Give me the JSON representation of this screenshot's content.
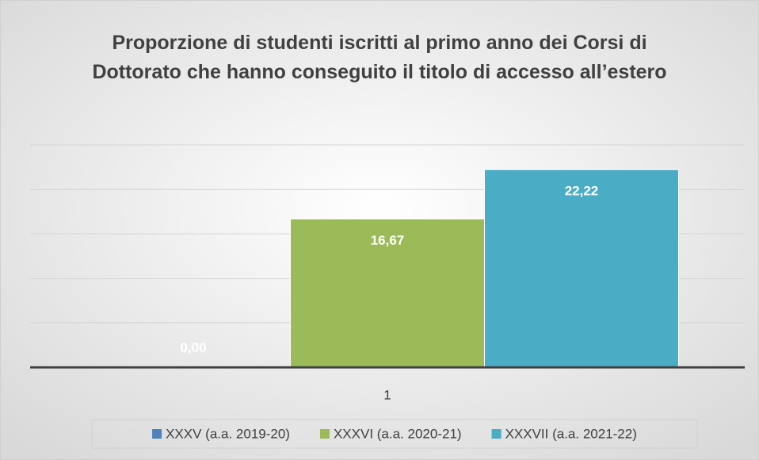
{
  "chart_data": {
    "type": "bar",
    "title": "Proporzione di studenti iscritti al primo anno dei Corsi di Dottorato che hanno conseguito il titolo di accesso all’estero",
    "categories": [
      "1"
    ],
    "series": [
      {
        "name": "XXXV (a.a. 2019-20)",
        "color": "#4f81bd",
        "values": [
          0.0
        ],
        "value_labels": [
          "0,00"
        ]
      },
      {
        "name": "XXXVI (a.a. 2020-21)",
        "color": "#9bbb59",
        "values": [
          16.67
        ],
        "value_labels": [
          "16,67"
        ]
      },
      {
        "name": "XXXVII (a.a. 2021-22)",
        "color": "#4bacc6",
        "values": [
          22.22
        ],
        "value_labels": [
          "22,22"
        ]
      }
    ],
    "ylim": [
      0,
      25
    ],
    "yticks": [
      0,
      5,
      10,
      15,
      20,
      25
    ],
    "grid": true,
    "legend": "bottom"
  }
}
